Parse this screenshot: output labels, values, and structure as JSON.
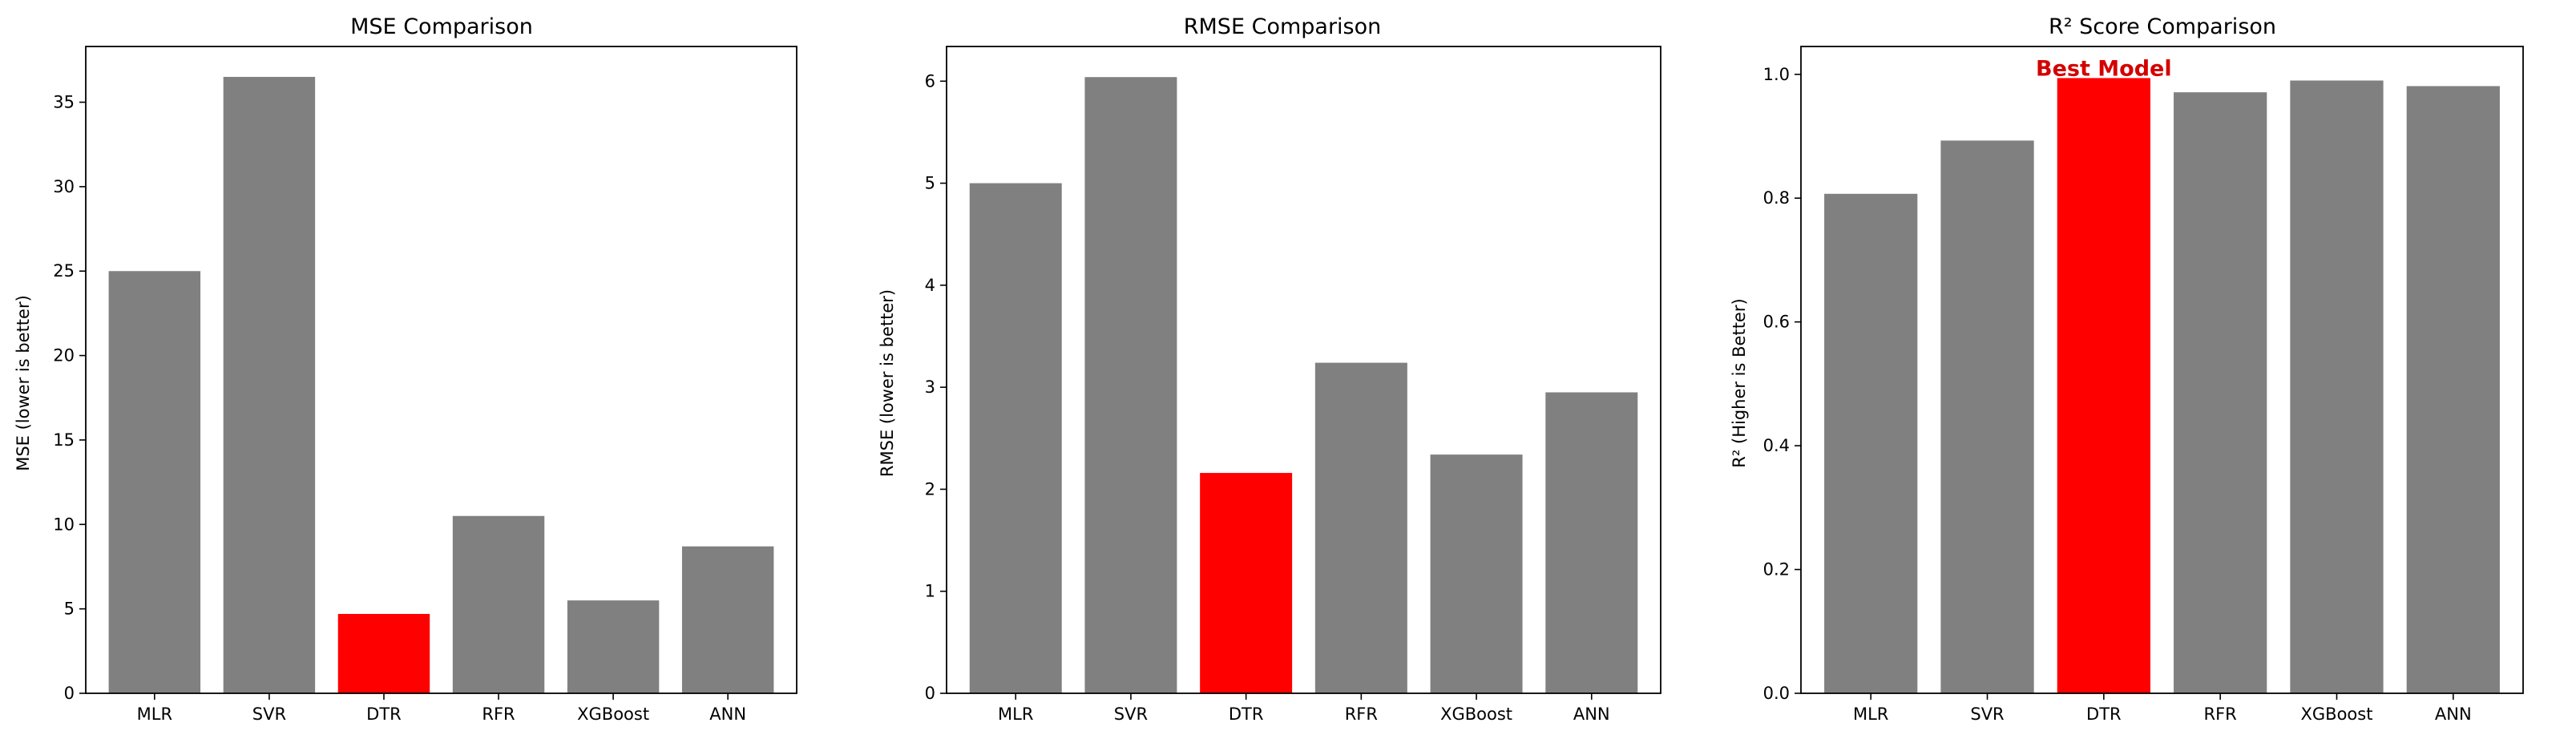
{
  "colors": {
    "bar_default": "#808080",
    "bar_highlight": "#ff0000",
    "annotation": "#d40000"
  },
  "chart_data": [
    {
      "type": "bar",
      "title": "MSE Comparison",
      "xlabel": "",
      "ylabel": "MSE (lower is better)",
      "categories": [
        "MLR",
        "SVR",
        "DTR",
        "RFR",
        "XGBoost",
        "ANN"
      ],
      "values": [
        25.0,
        36.5,
        4.7,
        10.5,
        5.5,
        8.7
      ],
      "highlight_index": 2,
      "ylim": [
        0,
        38.3
      ],
      "yticks": [
        0,
        5,
        10,
        15,
        20,
        25,
        30,
        35
      ],
      "ytick_labels": [
        "0",
        "5",
        "10",
        "15",
        "20",
        "25",
        "30",
        "35"
      ],
      "grid": false
    },
    {
      "type": "bar",
      "title": "RMSE Comparison",
      "xlabel": "",
      "ylabel": "RMSE (lower is better)",
      "categories": [
        "MLR",
        "SVR",
        "DTR",
        "RFR",
        "XGBoost",
        "ANN"
      ],
      "values": [
        5.0,
        6.04,
        2.16,
        3.24,
        2.34,
        2.95
      ],
      "highlight_index": 2,
      "ylim": [
        0,
        6.34
      ],
      "yticks": [
        0,
        1,
        2,
        3,
        4,
        5,
        6
      ],
      "ytick_labels": [
        "0",
        "1",
        "2",
        "3",
        "4",
        "5",
        "6"
      ],
      "grid": false
    },
    {
      "type": "bar",
      "title": "R² Score Comparison",
      "xlabel": "",
      "ylabel": "R² (Higher is Better)",
      "categories": [
        "MLR",
        "SVR",
        "DTR",
        "RFR",
        "XGBoost",
        "ANN"
      ],
      "values": [
        0.807,
        0.893,
        0.994,
        0.971,
        0.99,
        0.981
      ],
      "highlight_index": 2,
      "ylim": [
        0,
        1.045
      ],
      "yticks": [
        0,
        0.2,
        0.4,
        0.6,
        0.8,
        1.0
      ],
      "ytick_labels": [
        "0.0",
        "0.2",
        "0.4",
        "0.6",
        "0.8",
        "1.0"
      ],
      "grid": false,
      "annotation": {
        "text": "Best Model",
        "category_index": 2
      }
    }
  ]
}
